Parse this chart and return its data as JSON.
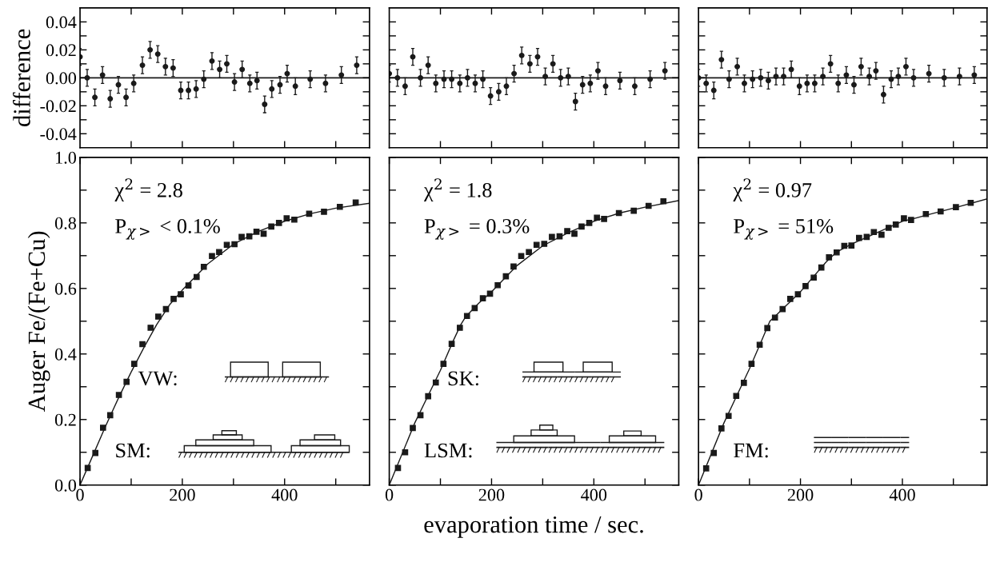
{
  "chart_data": [
    {
      "type": "scatter",
      "ylabel": "difference",
      "marker": "circle",
      "color": "#1a1a1a",
      "tick_labels": "y",
      "x": [
        0,
        14,
        29,
        44,
        59,
        75,
        90,
        105,
        122,
        137,
        152,
        167,
        182,
        197,
        212,
        227,
        242,
        258,
        273,
        287,
        302,
        317,
        332,
        346,
        361,
        375,
        391,
        405,
        421,
        450,
        480,
        511,
        541
      ],
      "values": [
        0.015,
        0.0,
        -0.014,
        0.002,
        -0.015,
        -0.005,
        -0.014,
        -0.004,
        0.009,
        0.02,
        0.017,
        0.008,
        0.007,
        -0.009,
        -0.009,
        -0.008,
        -0.001,
        0.012,
        0.006,
        0.01,
        -0.003,
        0.006,
        -0.004,
        -0.002,
        -0.019,
        -0.008,
        -0.005,
        0.003,
        -0.006,
        -0.001,
        -0.004,
        0.002,
        0.009
      ],
      "errors": [
        0.006,
        0.006,
        0.006,
        0.006,
        0.006,
        0.006,
        0.006,
        0.006,
        0.006,
        0.006,
        0.006,
        0.006,
        0.006,
        0.006,
        0.006,
        0.006,
        0.006,
        0.006,
        0.006,
        0.006,
        0.006,
        0.006,
        0.006,
        0.006,
        0.006,
        0.006,
        0.006,
        0.006,
        0.006,
        0.006,
        0.006,
        0.006,
        0.006
      ],
      "xlim": [
        0,
        566
      ],
      "xticks": [
        {
          "value": 100,
          "label": null
        },
        {
          "value": 200,
          "label": null
        },
        {
          "value": 300,
          "label": null
        },
        {
          "value": 400,
          "label": null
        },
        {
          "value": 500,
          "label": null
        }
      ],
      "ylim": [
        -0.05,
        0.05
      ],
      "yticks": [
        {
          "value": -0.04,
          "label": "-0.04"
        },
        {
          "value": -0.03,
          "label": null
        },
        {
          "value": -0.02,
          "label": "-0.02"
        },
        {
          "value": -0.01,
          "label": null
        },
        {
          "value": 0,
          "label": "0.00"
        },
        {
          "value": 0.01,
          "label": null
        },
        {
          "value": 0.02,
          "label": "0.02"
        },
        {
          "value": 0.03,
          "label": null
        },
        {
          "value": 0.04,
          "label": "0.04"
        }
      ],
      "ref_lines": [
        {
          "axis": "y",
          "value": 0,
          "color": "#1a1a1a"
        }
      ]
    },
    {
      "type": "scatter",
      "marker": "circle",
      "color": "#1a1a1a",
      "tick_labels": false,
      "x": [
        0,
        16,
        31,
        46,
        61,
        76,
        91,
        107,
        122,
        138,
        153,
        168,
        183,
        198,
        214,
        229,
        244,
        259,
        275,
        290,
        305,
        320,
        335,
        350,
        364,
        378,
        393,
        408,
        423,
        451,
        480,
        510,
        539
      ],
      "values": [
        0.003,
        0.0,
        -0.006,
        0.015,
        0.0,
        0.009,
        -0.004,
        -0.001,
        -0.001,
        -0.004,
        0.0,
        -0.004,
        -0.001,
        -0.013,
        -0.01,
        -0.006,
        0.003,
        0.016,
        0.01,
        0.015,
        0.001,
        0.01,
        0.0,
        0.001,
        -0.017,
        -0.005,
        -0.004,
        0.005,
        -0.006,
        -0.002,
        -0.006,
        -0.001,
        0.005
      ],
      "errors": [
        0.006,
        0.006,
        0.006,
        0.006,
        0.006,
        0.006,
        0.006,
        0.006,
        0.006,
        0.006,
        0.006,
        0.006,
        0.006,
        0.006,
        0.006,
        0.006,
        0.006,
        0.006,
        0.006,
        0.006,
        0.006,
        0.006,
        0.006,
        0.006,
        0.006,
        0.006,
        0.006,
        0.006,
        0.006,
        0.006,
        0.006,
        0.006,
        0.006
      ],
      "xlim": [
        0,
        566
      ],
      "xticks": [
        {
          "value": 100,
          "label": null
        },
        {
          "value": 200,
          "label": null
        },
        {
          "value": 300,
          "label": null
        },
        {
          "value": 400,
          "label": null
        },
        {
          "value": 500,
          "label": null
        }
      ],
      "ylim": [
        -0.05,
        0.05
      ],
      "yticks": [
        {
          "value": -0.04,
          "label": null
        },
        {
          "value": -0.03,
          "label": null
        },
        {
          "value": -0.02,
          "label": null
        },
        {
          "value": -0.01,
          "label": null
        },
        {
          "value": 0,
          "label": null
        },
        {
          "value": 0.01,
          "label": null
        },
        {
          "value": 0.02,
          "label": null
        },
        {
          "value": 0.03,
          "label": null
        },
        {
          "value": 0.04,
          "label": null
        }
      ],
      "ref_lines": [
        {
          "axis": "y",
          "value": 0,
          "color": "#1a1a1a"
        }
      ]
    },
    {
      "type": "scatter",
      "marker": "circle",
      "color": "#1a1a1a",
      "tick_labels": false,
      "x": [
        0,
        15,
        30,
        45,
        60,
        76,
        90,
        106,
        122,
        137,
        152,
        167,
        182,
        198,
        213,
        228,
        244,
        259,
        274,
        290,
        305,
        319,
        335,
        348,
        363,
        378,
        392,
        407,
        422,
        452,
        482,
        512,
        541
      ],
      "values": [
        0.0,
        -0.004,
        -0.009,
        0.013,
        -0.001,
        0.008,
        -0.004,
        -0.001,
        0.0,
        -0.002,
        0.001,
        0.001,
        0.006,
        -0.006,
        -0.004,
        -0.004,
        0.001,
        0.01,
        -0.004,
        0.002,
        -0.005,
        0.008,
        0.001,
        0.005,
        -0.012,
        -0.001,
        0.001,
        0.008,
        0.0,
        0.003,
        0.0,
        0.001,
        0.002
      ],
      "errors": [
        0.006,
        0.006,
        0.006,
        0.006,
        0.006,
        0.006,
        0.006,
        0.006,
        0.006,
        0.006,
        0.006,
        0.006,
        0.006,
        0.006,
        0.006,
        0.006,
        0.006,
        0.006,
        0.006,
        0.006,
        0.006,
        0.006,
        0.006,
        0.006,
        0.006,
        0.006,
        0.006,
        0.006,
        0.006,
        0.006,
        0.006,
        0.006,
        0.006
      ],
      "xlim": [
        0,
        566
      ],
      "xticks": [
        {
          "value": 100,
          "label": null
        },
        {
          "value": 200,
          "label": null
        },
        {
          "value": 300,
          "label": null
        },
        {
          "value": 400,
          "label": null
        },
        {
          "value": 500,
          "label": null
        }
      ],
      "ylim": [
        -0.05,
        0.05
      ],
      "yticks": [
        {
          "value": -0.04,
          "label": null
        },
        {
          "value": -0.03,
          "label": null
        },
        {
          "value": -0.02,
          "label": null
        },
        {
          "value": -0.01,
          "label": null
        },
        {
          "value": 0,
          "label": null
        },
        {
          "value": 0.01,
          "label": null
        },
        {
          "value": 0.02,
          "label": null
        },
        {
          "value": 0.03,
          "label": null
        },
        {
          "value": 0.04,
          "label": null
        }
      ],
      "ref_lines": [
        {
          "axis": "y",
          "value": 0,
          "color": "#1a1a1a"
        }
      ]
    },
    {
      "type": "scatter",
      "ylabel": "Auger Fe/(Fe+Cu)",
      "annotations": [
        "χ$^{2}$ = 2.8",
        "P$_{χ>}$ < 0.1%",
        "VW:",
        "SM:"
      ],
      "series": [
        {
          "type": "scatter",
          "marker": "square",
          "color": "#1a1a1a",
          "x": [
            15,
            30,
            45,
            59,
            76,
            91,
            106,
            122,
            138,
            153,
            168,
            183,
            197,
            212,
            228,
            242,
            258,
            272,
            287,
            302,
            316,
            331,
            345,
            359,
            374,
            389,
            404,
            419,
            448,
            477,
            508,
            539
          ],
          "values": [
            0.052,
            0.098,
            0.175,
            0.213,
            0.275,
            0.315,
            0.37,
            0.43,
            0.48,
            0.514,
            0.537,
            0.568,
            0.582,
            0.609,
            0.635,
            0.666,
            0.699,
            0.711,
            0.733,
            0.735,
            0.757,
            0.759,
            0.773,
            0.767,
            0.789,
            0.8,
            0.814,
            0.81,
            0.828,
            0.834,
            0.849,
            0.862
          ]
        },
        {
          "type": "line",
          "color": "#1a1a1a",
          "x": [
            0,
            25,
            50,
            75,
            100,
            125,
            150,
            175,
            200,
            250,
            300,
            350,
            400,
            450,
            500,
            566
          ],
          "values": [
            0,
            0.09,
            0.18,
            0.265,
            0.345,
            0.42,
            0.49,
            0.55,
            0.595,
            0.675,
            0.735,
            0.775,
            0.805,
            0.828,
            0.845,
            0.86
          ]
        }
      ],
      "xlim": [
        0,
        566
      ],
      "xticks": [
        0,
        {
          "value": 100,
          "label": null
        },
        200,
        {
          "value": 300,
          "label": null
        },
        400,
        {
          "value": 500,
          "label": null
        }
      ],
      "ylim": [
        0,
        1
      ],
      "yticks": [
        {
          "value": 0,
          "label": "0.0"
        },
        {
          "value": 0.1,
          "label": null
        },
        {
          "value": 0.2,
          "label": "0.2"
        },
        {
          "value": 0.3,
          "label": null
        },
        {
          "value": 0.4,
          "label": "0.4"
        },
        {
          "value": 0.5,
          "label": null
        },
        {
          "value": 0.6,
          "label": "0.6"
        },
        {
          "value": 0.7,
          "label": null
        },
        {
          "value": 0.8,
          "label": "0.8"
        },
        {
          "value": 0.9,
          "label": null
        },
        {
          "value": 1,
          "label": "1.0"
        }
      ]
    },
    {
      "type": "scatter",
      "xlabel": "evaporation time / sec.",
      "tick_labels": "x",
      "annotations": [
        "χ$^{2}$ = 1.8",
        "P$_{χ>}$ = 0.3%",
        "SK:",
        "LSM:"
      ],
      "series": [
        {
          "type": "scatter",
          "marker": "square",
          "color": "#1a1a1a",
          "x": [
            17,
            31,
            46,
            61,
            76,
            91,
            106,
            122,
            138,
            152,
            167,
            183,
            197,
            212,
            228,
            243,
            258,
            273,
            288,
            303,
            318,
            333,
            348,
            362,
            376,
            391,
            406,
            420,
            449,
            478,
            507,
            536
          ],
          "values": [
            0.052,
            0.1,
            0.174,
            0.213,
            0.271,
            0.313,
            0.37,
            0.431,
            0.48,
            0.516,
            0.54,
            0.57,
            0.584,
            0.61,
            0.637,
            0.667,
            0.699,
            0.711,
            0.733,
            0.736,
            0.757,
            0.759,
            0.775,
            0.767,
            0.789,
            0.8,
            0.816,
            0.812,
            0.83,
            0.837,
            0.852,
            0.866
          ]
        },
        {
          "type": "line",
          "color": "#1a1a1a",
          "x": [
            0,
            50,
            100,
            125,
            140,
            150,
            175,
            200,
            250,
            300,
            350,
            400,
            450,
            500,
            566
          ],
          "values": [
            0,
            0.19,
            0.35,
            0.44,
            0.49,
            0.515,
            0.555,
            0.59,
            0.67,
            0.73,
            0.77,
            0.805,
            0.83,
            0.848,
            0.868
          ]
        }
      ],
      "xlim": [
        0,
        566
      ],
      "xticks": [
        0,
        {
          "value": 100,
          "label": null
        },
        200,
        {
          "value": 300,
          "label": null
        },
        400,
        {
          "value": 500,
          "label": null
        }
      ],
      "ylim": [
        0,
        1
      ],
      "yticks": [
        {
          "value": 0,
          "label": null
        },
        {
          "value": 0.1,
          "label": null
        },
        {
          "value": 0.2,
          "label": null
        },
        {
          "value": 0.3,
          "label": null
        },
        {
          "value": 0.4,
          "label": null
        },
        {
          "value": 0.5,
          "label": null
        },
        {
          "value": 0.6,
          "label": null
        },
        {
          "value": 0.7,
          "label": null
        },
        {
          "value": 0.8,
          "label": null
        },
        {
          "value": 0.9,
          "label": null
        },
        {
          "value": 1,
          "label": null
        }
      ]
    },
    {
      "type": "scatter",
      "tick_labels": "x",
      "annotations": [
        "χ$^{2}$ = 0.97",
        "P$_{χ>}$ = 51%",
        "FM:"
      ],
      "series": [
        {
          "type": "scatter",
          "marker": "square",
          "color": "#1a1a1a",
          "x": [
            15,
            30,
            45,
            59,
            74,
            89,
            104,
            120,
            135,
            150,
            165,
            180,
            195,
            210,
            226,
            241,
            256,
            271,
            286,
            300,
            315,
            330,
            344,
            359,
            373,
            387,
            403,
            417,
            446,
            475,
            505,
            534
          ],
          "values": [
            0.051,
            0.098,
            0.173,
            0.211,
            0.272,
            0.312,
            0.37,
            0.428,
            0.479,
            0.511,
            0.537,
            0.568,
            0.582,
            0.607,
            0.633,
            0.664,
            0.695,
            0.71,
            0.73,
            0.731,
            0.754,
            0.757,
            0.772,
            0.764,
            0.785,
            0.795,
            0.814,
            0.809,
            0.827,
            0.835,
            0.848,
            0.861
          ]
        },
        {
          "type": "line",
          "color": "#1a1a1a",
          "x": [
            0,
            50,
            100,
            125,
            140,
            150,
            200,
            250,
            270,
            300,
            350,
            400,
            420,
            450,
            500,
            566
          ],
          "values": [
            0,
            0.19,
            0.355,
            0.445,
            0.5,
            0.515,
            0.59,
            0.68,
            0.71,
            0.735,
            0.77,
            0.805,
            0.812,
            0.825,
            0.845,
            0.873
          ]
        }
      ],
      "xlim": [
        0,
        566
      ],
      "xticks": [
        0,
        {
          "value": 100,
          "label": null
        },
        200,
        {
          "value": 300,
          "label": null
        },
        400,
        {
          "value": 500,
          "label": null
        }
      ],
      "ylim": [
        0,
        1
      ],
      "yticks": [
        {
          "value": 0,
          "label": null
        },
        {
          "value": 0.1,
          "label": null
        },
        {
          "value": 0.2,
          "label": null
        },
        {
          "value": 0.3,
          "label": null
        },
        {
          "value": 0.4,
          "label": null
        },
        {
          "value": 0.5,
          "label": null
        },
        {
          "value": 0.6,
          "label": null
        },
        {
          "value": 0.7,
          "label": null
        },
        {
          "value": 0.8,
          "label": null
        },
        {
          "value": 0.9,
          "label": null
        },
        {
          "value": 1,
          "label": null
        }
      ]
    }
  ]
}
